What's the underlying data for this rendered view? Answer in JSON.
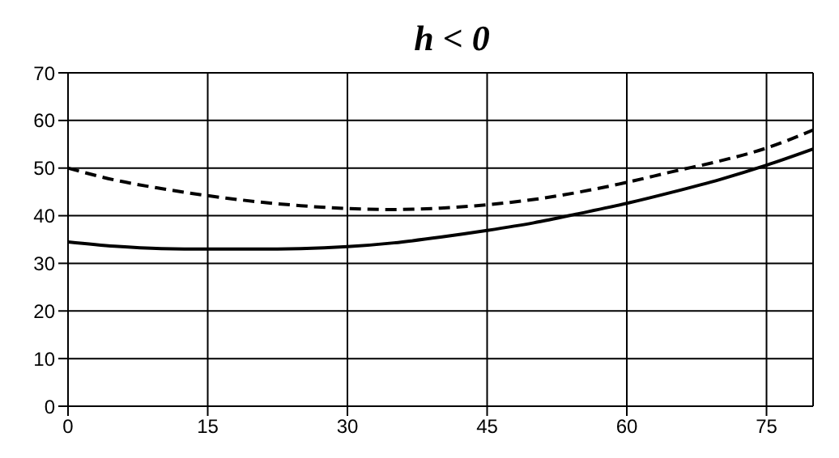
{
  "chart_data": {
    "type": "line",
    "title": "h < 0",
    "x": [
      0,
      5,
      10,
      15,
      20,
      25,
      30,
      35,
      40,
      45,
      50,
      55,
      60,
      65,
      70,
      75,
      80
    ],
    "series": [
      {
        "color": "#000000",
        "line_style": "solid",
        "values": [
          34.5,
          33.6,
          33.1,
          33,
          33,
          33.1,
          33.5,
          34.3,
          35.5,
          36.9,
          38.5,
          40.5,
          42.6,
          45,
          47.6,
          50.6,
          54
        ]
      },
      {
        "color": "#000000",
        "line_style": "dashed",
        "values": [
          50,
          47.5,
          45.7,
          44.2,
          43,
          42.1,
          41.5,
          41.3,
          41.6,
          42.3,
          43.4,
          45,
          47,
          49.3,
          51.5,
          54.2,
          58
        ]
      }
    ],
    "xlim": [
      0,
      80
    ],
    "xticks": [
      0,
      15,
      30,
      45,
      60,
      75
    ],
    "ylim": [
      0,
      70
    ],
    "yticks": [
      0,
      10,
      20,
      30,
      40,
      50,
      60,
      70
    ],
    "grid": true,
    "legend": false,
    "marker": "none"
  }
}
